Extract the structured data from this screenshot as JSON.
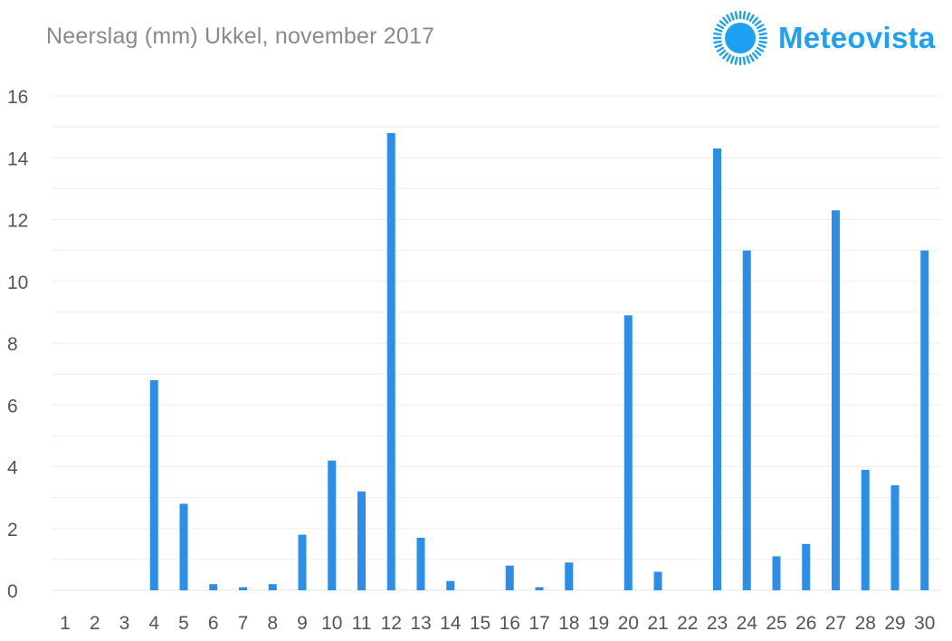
{
  "brand": {
    "name": "Meteovista",
    "logo_icon": "sun-icon",
    "color": "#1ea1f2"
  },
  "chart_data": {
    "type": "bar",
    "title": "Neerslag (mm) Ukkel, november 2017",
    "xlabel": "",
    "ylabel": "",
    "categories": [
      "1",
      "2",
      "3",
      "4",
      "5",
      "6",
      "7",
      "8",
      "9",
      "10",
      "11",
      "12",
      "13",
      "14",
      "15",
      "16",
      "17",
      "18",
      "19",
      "20",
      "21",
      "22",
      "23",
      "24",
      "25",
      "26",
      "27",
      "28",
      "29",
      "30"
    ],
    "values": [
      0,
      0,
      0,
      6.8,
      2.8,
      0.2,
      0.1,
      0.2,
      1.8,
      4.2,
      3.2,
      14.8,
      1.7,
      0.3,
      0,
      0.8,
      0.1,
      0.9,
      0,
      8.9,
      0.6,
      0,
      14.3,
      11.0,
      1.1,
      1.5,
      12.3,
      3.9,
      3.4,
      11.0
    ],
    "ylim": [
      0,
      16
    ],
    "yticks": [
      0,
      2,
      4,
      6,
      8,
      10,
      12,
      14,
      16
    ],
    "grid": true,
    "legend": "none",
    "bar_color": "#2b8fea"
  }
}
